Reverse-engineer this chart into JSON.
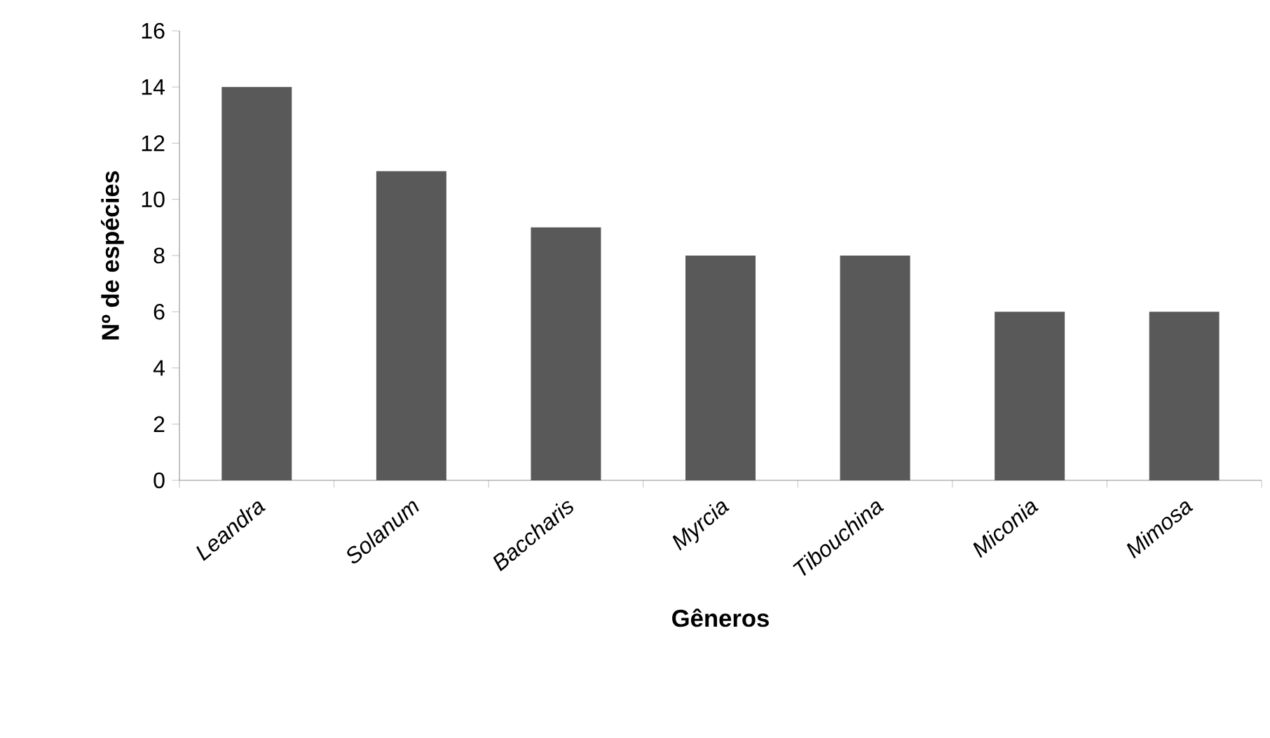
{
  "chart_data": {
    "type": "bar",
    "xlabel": "Gêneros",
    "ylabel": "Nº de espécies",
    "categories": [
      "Leandra",
      "Solanum",
      "Baccharis",
      "Myrcia",
      "Tibouchina",
      "Miconia",
      "Mimosa"
    ],
    "values": [
      14,
      11,
      9,
      8,
      8,
      6,
      6
    ],
    "color": "#595959",
    "ylim": [
      0,
      16
    ],
    "yticks": [
      0,
      2,
      4,
      6,
      8,
      10,
      12,
      14,
      16
    ],
    "grid": false
  }
}
